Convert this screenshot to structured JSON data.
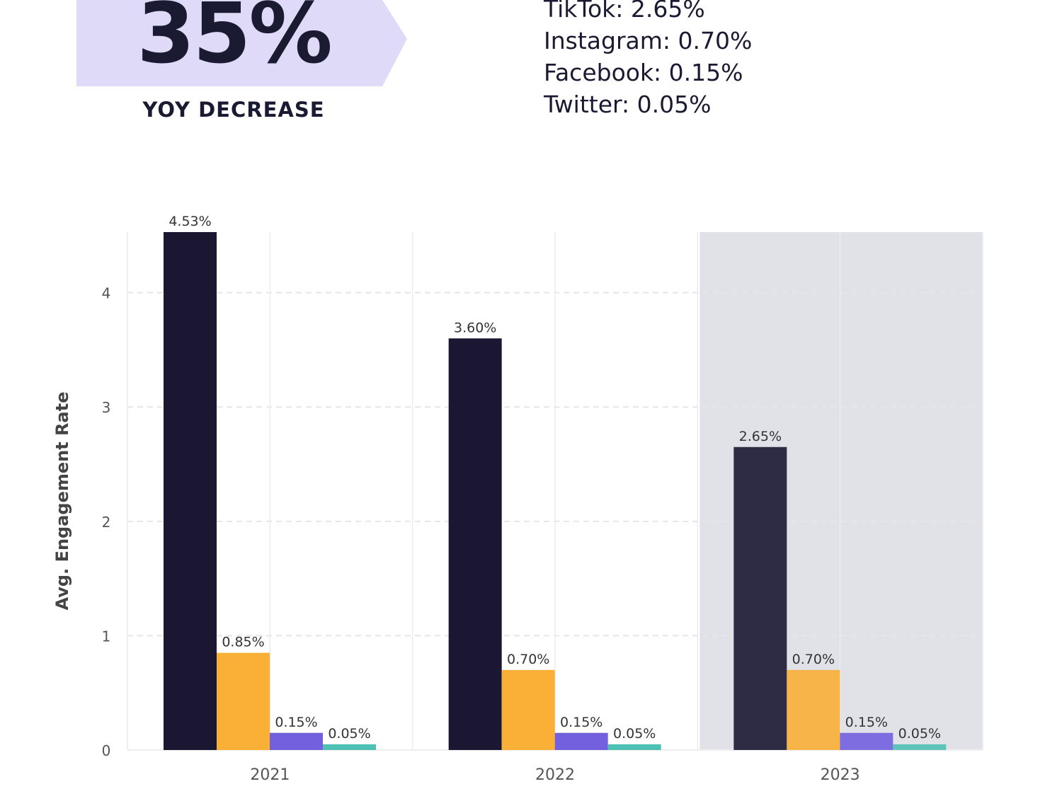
{
  "stat": {
    "value": "35%",
    "caption": "YOY DECREASE"
  },
  "platform_rates": [
    "TikTok: 2.65%",
    "Instagram: 0.70%",
    "Facebook: 0.15%",
    "Twitter: 0.05%"
  ],
  "colors": {
    "banner": "#dedaf8",
    "tiktok": "#1b1733",
    "instagram": "#fab037",
    "facebook": "#7360df",
    "twitter": "#4fc1b4",
    "highlight": "#e1e2e8"
  },
  "chart_data": {
    "type": "bar",
    "categories": [
      "2021",
      "2022",
      "2023"
    ],
    "series": [
      {
        "values": [
          4.53,
          3.6,
          2.65
        ],
        "labels": [
          "4.53%",
          "3.60%",
          "2.65%"
        ],
        "color": "#1b1733"
      },
      {
        "values": [
          0.85,
          0.7,
          0.7
        ],
        "labels": [
          "0.85%",
          "0.70%",
          "0.70%"
        ],
        "color": "#fab037"
      },
      {
        "values": [
          0.15,
          0.15,
          0.15
        ],
        "labels": [
          "0.15%",
          "0.15%",
          "0.15%"
        ],
        "color": "#7360df"
      },
      {
        "values": [
          0.05,
          0.05,
          0.05
        ],
        "labels": [
          "0.05%",
          "0.05%",
          "0.05%"
        ],
        "color": "#4fc1b4"
      }
    ],
    "ylabel": "Avg. Engagement Rate",
    "xlabel": "",
    "ylim": [
      0,
      4.53
    ],
    "yticks": [
      0,
      1,
      2,
      3,
      4
    ],
    "highlighted_category": "2023",
    "grid": true
  }
}
